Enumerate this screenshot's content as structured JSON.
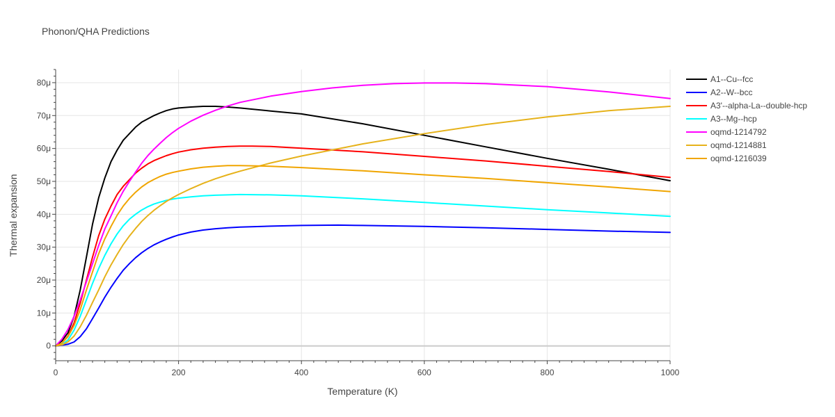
{
  "chart_data": {
    "type": "line",
    "title": "Phonon/QHA Predictions",
    "xlabel": "Temperature (K)",
    "ylabel": "Thermal expansion",
    "xlim": [
      0,
      1000
    ],
    "ylim": [
      -4.5,
      84
    ],
    "grid": true,
    "legend_position": "right",
    "x_ticks": [
      {
        "value": 0,
        "label": "0"
      },
      {
        "value": 200,
        "label": "200"
      },
      {
        "value": 400,
        "label": "400"
      },
      {
        "value": 600,
        "label": "600"
      },
      {
        "value": 800,
        "label": "800"
      },
      {
        "value": 1000,
        "label": "1000"
      }
    ],
    "y_ticks": [
      {
        "value": 0,
        "label": "0"
      },
      {
        "value": 10,
        "label": "10μ"
      },
      {
        "value": 20,
        "label": "20μ"
      },
      {
        "value": 30,
        "label": "30μ"
      },
      {
        "value": 40,
        "label": "40μ"
      },
      {
        "value": 50,
        "label": "50μ"
      },
      {
        "value": 60,
        "label": "60μ"
      },
      {
        "value": 70,
        "label": "70μ"
      },
      {
        "value": 80,
        "label": "80μ"
      }
    ],
    "y_unit_scale": "μ",
    "series": [
      {
        "name": "A1--Cu--fcc",
        "color": "#000000",
        "x": [
          0,
          10,
          20,
          30,
          40,
          50,
          60,
          70,
          80,
          90,
          100,
          110,
          120,
          130,
          140,
          150,
          160,
          170,
          180,
          190,
          200,
          220,
          240,
          260,
          280,
          300,
          350,
          400,
          500,
          600,
          700,
          800,
          900,
          1000
        ],
        "y": [
          0,
          1.5,
          4,
          9,
          17,
          27,
          37,
          45,
          51,
          56,
          59.5,
          62.5,
          64.5,
          66.5,
          68,
          69,
          70,
          70.8,
          71.5,
          72,
          72.3,
          72.6,
          72.8,
          72.8,
          72.6,
          72.3,
          71.4,
          70.5,
          67.5,
          64,
          60.5,
          57,
          53.7,
          50.2
        ]
      },
      {
        "name": "A2--W--bcc",
        "color": "#0000ff",
        "x": [
          0,
          10,
          20,
          30,
          40,
          50,
          60,
          70,
          80,
          90,
          100,
          110,
          120,
          130,
          140,
          150,
          160,
          170,
          180,
          190,
          200,
          220,
          240,
          260,
          280,
          300,
          350,
          400,
          460,
          500,
          600,
          700,
          800,
          900,
          1000
        ],
        "y": [
          0,
          0.2,
          0.5,
          1.2,
          2.8,
          5.2,
          8.3,
          11.5,
          14.8,
          17.8,
          20.5,
          23,
          25,
          26.8,
          28.3,
          29.6,
          30.7,
          31.6,
          32.4,
          33.1,
          33.7,
          34.6,
          35.2,
          35.6,
          35.9,
          36.1,
          36.4,
          36.6,
          36.7,
          36.6,
          36.3,
          35.9,
          35.4,
          34.9,
          34.5
        ]
      },
      {
        "name": "A3'--alpha-La--double-hcp",
        "color": "#ff0000",
        "x": [
          0,
          10,
          20,
          30,
          40,
          50,
          60,
          70,
          80,
          90,
          100,
          110,
          120,
          130,
          140,
          150,
          160,
          170,
          180,
          190,
          200,
          220,
          240,
          260,
          280,
          300,
          320,
          350,
          400,
          500,
          600,
          700,
          800,
          900,
          1000
        ],
        "y": [
          0,
          0.8,
          3,
          7,
          13,
          20,
          27,
          33.5,
          38.5,
          42.5,
          46,
          48.5,
          50.5,
          52.5,
          54,
          55.3,
          56.3,
          57.1,
          57.8,
          58.4,
          58.9,
          59.6,
          60.1,
          60.4,
          60.6,
          60.7,
          60.7,
          60.6,
          60.1,
          59,
          57.6,
          56.2,
          54.6,
          53,
          51.2
        ]
      },
      {
        "name": "A3--Mg--hcp",
        "color": "#00ffff",
        "x": [
          0,
          10,
          20,
          30,
          40,
          50,
          60,
          70,
          80,
          90,
          100,
          110,
          120,
          130,
          140,
          150,
          160,
          170,
          180,
          190,
          200,
          220,
          240,
          260,
          280,
          300,
          350,
          400,
          500,
          600,
          700,
          800,
          900,
          1000
        ],
        "y": [
          0,
          0.4,
          1.8,
          4.8,
          9,
          14,
          19,
          23.5,
          27.5,
          31,
          34,
          36.5,
          38.5,
          40,
          41.3,
          42.3,
          43.1,
          43.7,
          44.2,
          44.6,
          44.9,
          45.3,
          45.6,
          45.8,
          45.9,
          46,
          45.9,
          45.6,
          44.7,
          43.6,
          42.5,
          41.4,
          40.4,
          39.4
        ]
      },
      {
        "name": "oqmd-1214792",
        "color": "#ff00ff",
        "x": [
          0,
          10,
          20,
          30,
          40,
          50,
          60,
          70,
          80,
          90,
          100,
          110,
          120,
          130,
          140,
          150,
          160,
          170,
          180,
          190,
          200,
          220,
          240,
          260,
          280,
          300,
          350,
          400,
          450,
          500,
          550,
          600,
          650,
          700,
          800,
          900,
          1000
        ],
        "y": [
          0,
          2,
          5,
          9,
          14,
          19.5,
          25,
          30.5,
          35.5,
          39.5,
          43.5,
          47,
          50,
          52.8,
          55.5,
          57.8,
          59.8,
          61.6,
          63.3,
          64.8,
          66.1,
          68.3,
          70.1,
          71.6,
          72.9,
          74,
          75.9,
          77.3,
          78.4,
          79.2,
          79.7,
          79.9,
          79.9,
          79.7,
          78.8,
          77.2,
          75.2
        ]
      },
      {
        "name": "oqmd-1214881",
        "color": "#e6b21a",
        "x": [
          0,
          10,
          20,
          30,
          40,
          50,
          60,
          70,
          80,
          90,
          100,
          110,
          120,
          130,
          140,
          150,
          160,
          170,
          180,
          190,
          200,
          220,
          240,
          260,
          280,
          300,
          350,
          400,
          500,
          600,
          700,
          800,
          900,
          1000
        ],
        "y": [
          0,
          0.3,
          1.2,
          3,
          5.8,
          9.3,
          13.2,
          17,
          21,
          24.6,
          27.8,
          30.8,
          33.4,
          35.7,
          37.8,
          39.6,
          41.2,
          42.6,
          43.9,
          45,
          46,
          47.8,
          49.4,
          50.8,
          52,
          53.1,
          55.6,
          57.7,
          61.4,
          64.5,
          67.3,
          69.6,
          71.5,
          72.8
        ]
      },
      {
        "name": "oqmd-1216039",
        "color": "#f0a500",
        "x": [
          0,
          10,
          20,
          30,
          40,
          50,
          60,
          70,
          80,
          90,
          100,
          110,
          120,
          130,
          140,
          150,
          160,
          170,
          180,
          190,
          200,
          220,
          240,
          260,
          280,
          300,
          350,
          400,
          500,
          600,
          700,
          800,
          900,
          1000
        ],
        "y": [
          0,
          0.8,
          2.8,
          6.2,
          11,
          17,
          22.5,
          28,
          32.5,
          36.3,
          39.7,
          42.5,
          44.8,
          46.7,
          48.3,
          49.6,
          50.6,
          51.5,
          52.2,
          52.7,
          53.1,
          53.8,
          54.3,
          54.6,
          54.8,
          54.8,
          54.6,
          54.2,
          53.2,
          52,
          50.9,
          49.6,
          48.3,
          46.9
        ]
      }
    ]
  }
}
